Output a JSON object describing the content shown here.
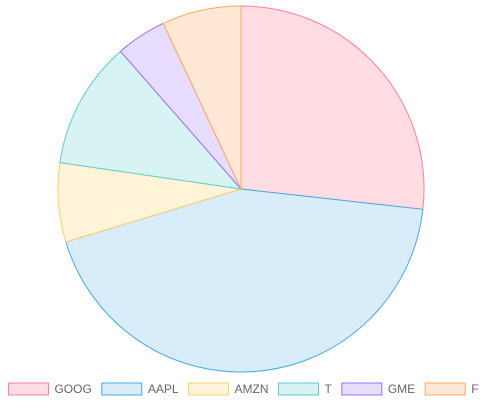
{
  "chart_data": {
    "type": "pie",
    "categories": [
      "GOOG",
      "AAPL",
      "AMZN",
      "T",
      "GME",
      "F"
    ],
    "values": [
      27.6,
      44.9,
      7.2,
      11.6,
      4.6,
      7.2
    ],
    "legend": "bottom",
    "colors": {
      "fill": [
        "#ffdde3",
        "#d8ecfa",
        "#fff3d8",
        "#d8f3f3",
        "#e8dcff",
        "#ffe8d6"
      ],
      "stroke": [
        "#ff7f98",
        "#46aaea",
        "#ffd06b",
        "#61cbcb",
        "#9d70ff",
        "#ffaa5c"
      ]
    }
  }
}
